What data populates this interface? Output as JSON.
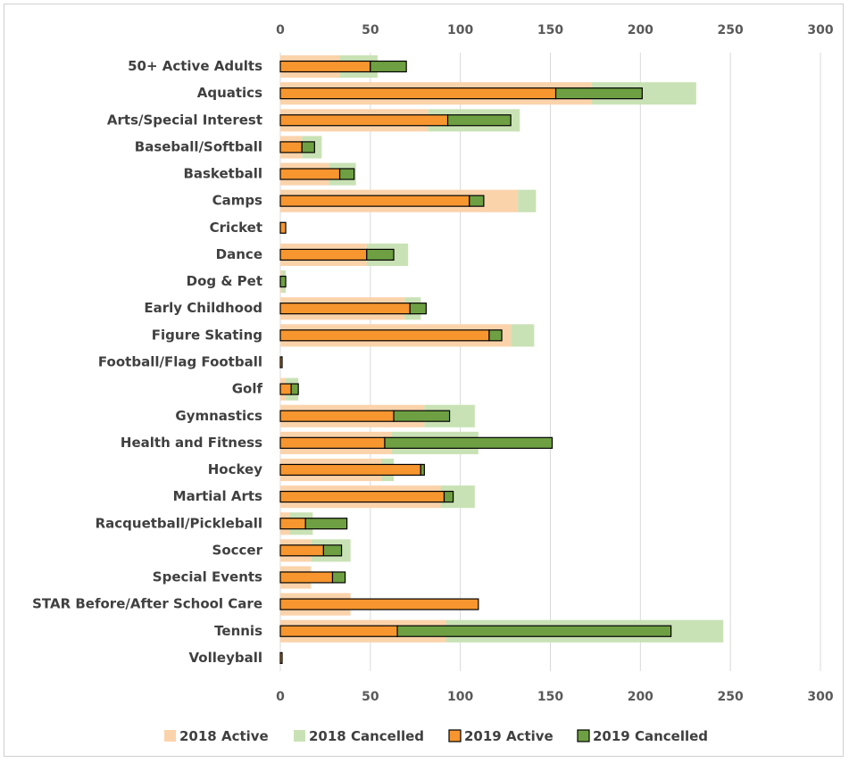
{
  "chart_data": {
    "type": "bar",
    "orientation": "horizontal",
    "title": "",
    "xlabel": "",
    "ylabel": "",
    "xlim": [
      0,
      300
    ],
    "xticks": [
      0,
      50,
      100,
      150,
      200,
      250,
      300
    ],
    "grid": true,
    "legend_position": "bottom",
    "stacked": true,
    "categories": [
      "50+ Active Adults",
      "Aquatics",
      "Arts/Special Interest",
      "Baseball/Softball",
      "Basketball",
      "Camps",
      "Cricket",
      "Dance",
      "Dog & Pet",
      "Early Childhood",
      "Figure Skating",
      "Football/Flag Football",
      "Golf",
      "Gymnastics",
      "Health and Fitness",
      "Hockey",
      "Martial Arts",
      "Racquetball/Pickleball",
      "Soccer",
      "Special Events",
      "STAR Before/After School Care",
      "Tennis",
      "Volleyball"
    ],
    "series": [
      {
        "name": "2018 Active",
        "stack": "2018",
        "color": "#fbd3ab",
        "values": [
          33,
          173,
          82,
          12,
          27,
          132,
          0,
          48,
          1,
          69,
          128,
          0,
          3,
          80,
          62,
          56,
          89,
          5,
          17,
          17,
          39,
          92,
          0
        ]
      },
      {
        "name": "2018 Cancelled",
        "stack": "2018",
        "color": "#c9e2b5",
        "values": [
          21,
          58,
          51,
          11,
          15,
          10,
          0,
          23,
          2,
          9,
          13,
          0,
          7,
          28,
          48,
          7,
          19,
          13,
          22,
          0,
          0,
          154,
          0
        ]
      },
      {
        "name": "2019 Active",
        "stack": "2019",
        "color": "#f7962f",
        "values": [
          50,
          153,
          93,
          12,
          33,
          105,
          3,
          48,
          0,
          72,
          116,
          1,
          6,
          63,
          58,
          78,
          91,
          14,
          24,
          29,
          110,
          65,
          1
        ]
      },
      {
        "name": "2019 Cancelled",
        "stack": "2019",
        "color": "#6ea043",
        "values": [
          20,
          48,
          35,
          7,
          8,
          8,
          0,
          15,
          3,
          9,
          7,
          0,
          4,
          31,
          93,
          2,
          5,
          23,
          10,
          7,
          0,
          152,
          0
        ]
      }
    ]
  }
}
